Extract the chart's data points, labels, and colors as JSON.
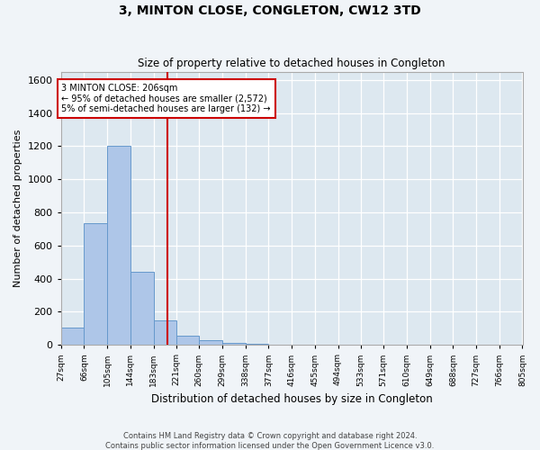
{
  "title": "3, MINTON CLOSE, CONGLETON, CW12 3TD",
  "subtitle": "Size of property relative to detached houses in Congleton",
  "xlabel": "Distribution of detached houses by size in Congleton",
  "ylabel": "Number of detached properties",
  "footer_line1": "Contains HM Land Registry data © Crown copyright and database right 2024.",
  "footer_line2": "Contains public sector information licensed under the Open Government Licence v3.0.",
  "bar_color": "#aec6e8",
  "bar_edge_color": "#6699cc",
  "background_color": "#dde8f0",
  "grid_color": "#ffffff",
  "fig_bg_color": "#f0f4f8",
  "property_line_x": 206,
  "property_line_color": "#cc0000",
  "annotation_line1": "3 MINTON CLOSE: 206sqm",
  "annotation_line2": "← 95% of detached houses are smaller (2,572)",
  "annotation_line3": "5% of semi-detached houses are larger (132) →",
  "annotation_box_color": "#cc0000",
  "bin_edges": [
    27,
    66,
    105,
    144,
    183,
    221,
    260,
    299,
    338,
    377,
    416,
    455,
    494,
    533,
    571,
    610,
    649,
    688,
    727,
    766,
    805
  ],
  "bar_heights": [
    105,
    735,
    1200,
    440,
    150,
    55,
    30,
    15,
    5,
    2,
    1,
    1,
    0,
    0,
    0,
    0,
    0,
    0,
    0,
    0
  ],
  "ylim": [
    0,
    1650
  ],
  "yticks": [
    0,
    200,
    400,
    600,
    800,
    1000,
    1200,
    1400,
    1600
  ]
}
